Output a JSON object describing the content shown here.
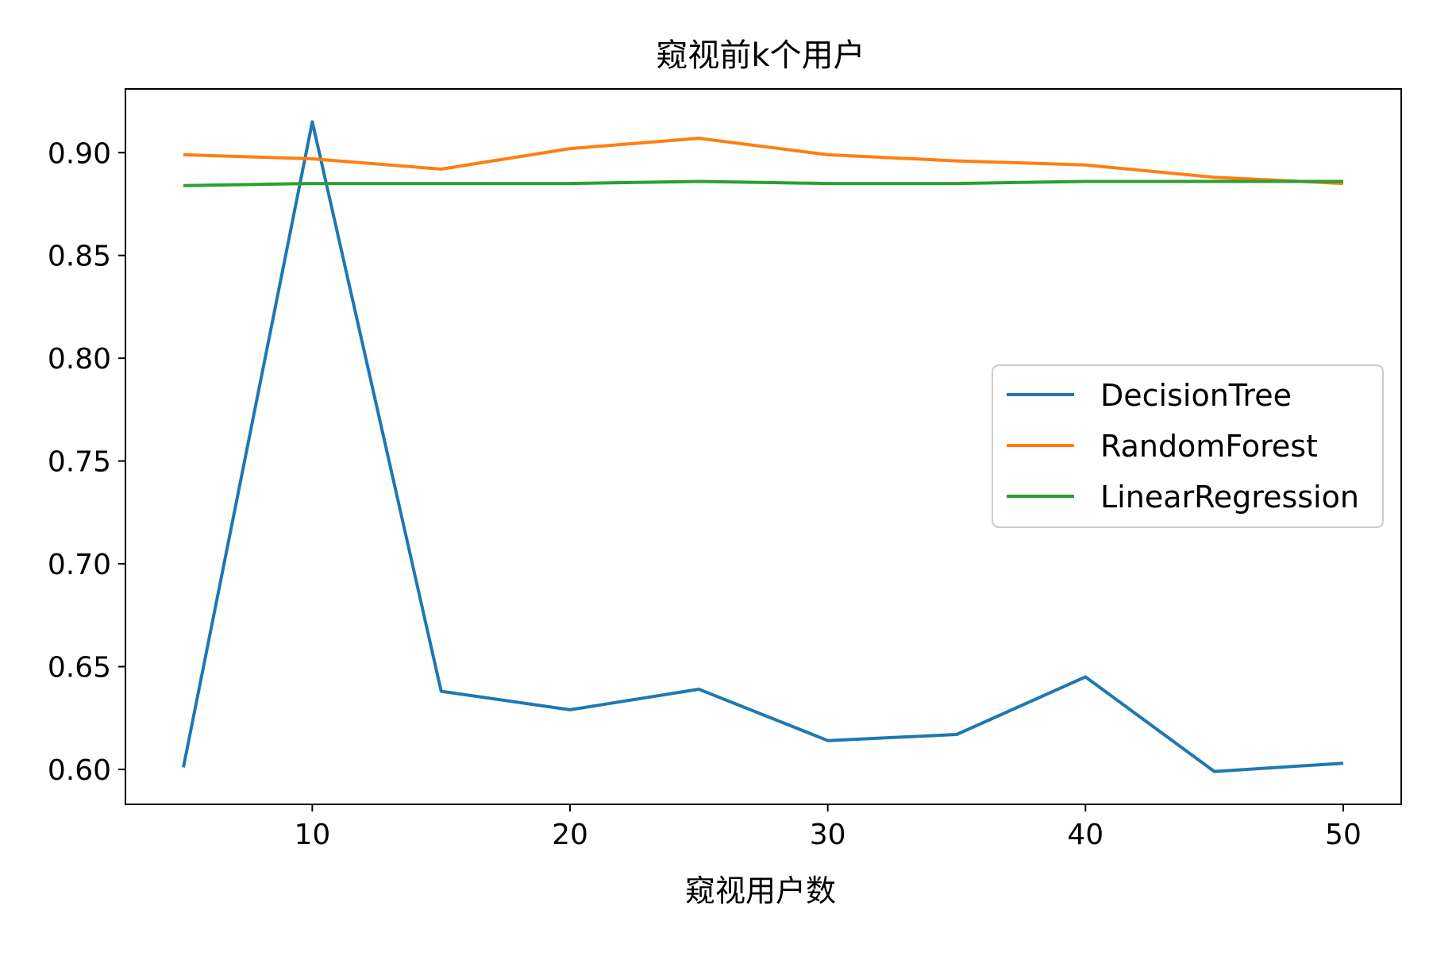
{
  "chart_data": {
    "type": "line",
    "title": "窥视前k个用户",
    "xlabel": "窥视用户数",
    "ylabel": "",
    "x": [
      5,
      10,
      15,
      20,
      25,
      30,
      35,
      40,
      45,
      50
    ],
    "xlim": [
      2.75,
      52.25
    ],
    "ylim": [
      0.583,
      0.931
    ],
    "xticks": [
      10,
      20,
      30,
      40,
      50
    ],
    "xtick_labels": [
      "10",
      "20",
      "30",
      "40",
      "50"
    ],
    "yticks": [
      0.6,
      0.65,
      0.7,
      0.75,
      0.8,
      0.85,
      0.9
    ],
    "ytick_labels": [
      "0.60",
      "0.65",
      "0.70",
      "0.75",
      "0.80",
      "0.85",
      "0.90"
    ],
    "grid": false,
    "legend_position": "center-right",
    "series": [
      {
        "name": "DecisionTree",
        "color": "#1f77b4",
        "values": [
          0.601,
          0.915,
          0.638,
          0.629,
          0.639,
          0.614,
          0.617,
          0.645,
          0.599,
          0.603
        ]
      },
      {
        "name": "RandomForest",
        "color": "#ff7f0e",
        "values": [
          0.899,
          0.897,
          0.892,
          0.902,
          0.907,
          0.899,
          0.896,
          0.894,
          0.888,
          0.885
        ]
      },
      {
        "name": "LinearRegression",
        "color": "#2ca02c",
        "values": [
          0.884,
          0.885,
          0.885,
          0.885,
          0.886,
          0.885,
          0.885,
          0.886,
          0.886,
          0.886
        ]
      }
    ]
  }
}
